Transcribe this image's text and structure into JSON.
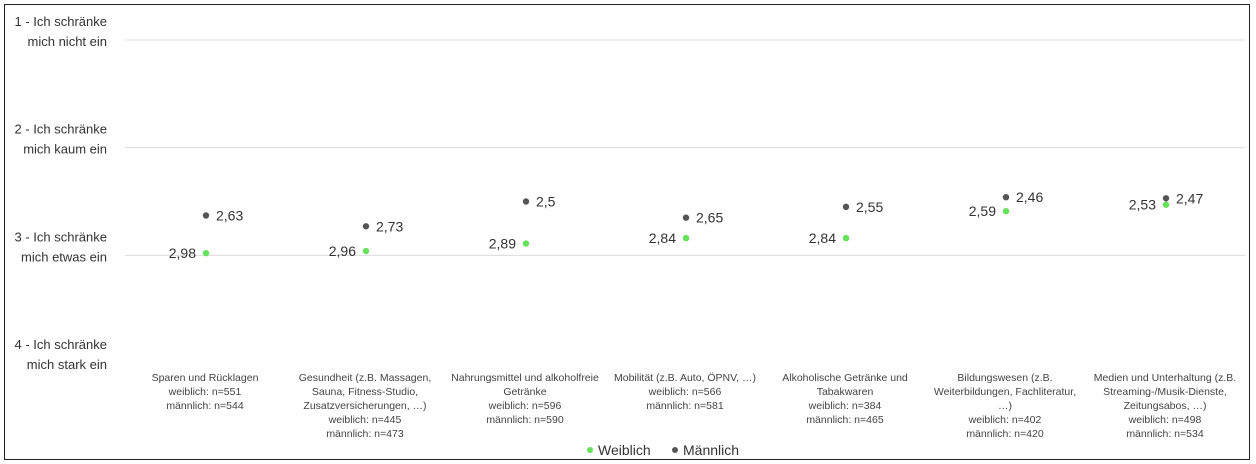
{
  "chart_data": {
    "type": "scatter",
    "y_axis": {
      "min": 1,
      "max": 4,
      "inverted": true,
      "ticks": [
        {
          "value": 1,
          "lines": [
            "1 - Ich schränke",
            "mich nicht ein"
          ]
        },
        {
          "value": 2,
          "lines": [
            "2 - Ich schränke",
            "mich kaum ein"
          ]
        },
        {
          "value": 3,
          "lines": [
            "3 - Ich schränke",
            "mich etwas ein"
          ]
        },
        {
          "value": 4,
          "lines": [
            "4 - Ich schränke",
            "mich stark ein"
          ]
        }
      ]
    },
    "grid": true,
    "legend_position": "bottom",
    "categories": [
      {
        "lines": [
          "Sparen und Rücklagen",
          "weiblich: n=551",
          "männlich: n=544"
        ]
      },
      {
        "lines": [
          "Gesundheit (z.B. Massagen,",
          "Sauna, Fitness-Studio,",
          "Zusatzversicherungen, …)",
          "weiblich: n=445",
          "männlich: n=473"
        ]
      },
      {
        "lines": [
          "Nahrungsmittel und alkoholfreie",
          "Getränke",
          "weiblich: n=596",
          "männlich: n=590"
        ]
      },
      {
        "lines": [
          "Mobilität (z.B. Auto, ÖPNV, …)",
          "weiblich: n=566",
          "männlich: n=581"
        ]
      },
      {
        "lines": [
          "Alkoholische Getränke und",
          "Tabakwaren",
          "weiblich: n=384",
          "männlich: n=465"
        ]
      },
      {
        "lines": [
          "Bildungswesen (z.B.",
          "Weiterbildungen, Fachliteratur,",
          "…)",
          "weiblich: n=402",
          "männlich: n=420"
        ]
      },
      {
        "lines": [
          "Medien und Unterhaltung (z.B.",
          "Streaming-/Musik-Dienste,",
          "Zeitungsabos, …)",
          "weiblich: n=498",
          "männlich: n=534"
        ]
      }
    ],
    "series": [
      {
        "name": "Weiblich",
        "color": "#66e25a",
        "values": [
          2.98,
          2.96,
          2.89,
          2.84,
          2.84,
          2.59,
          2.53
        ],
        "labels": [
          "2,98",
          "2,96",
          "2,89",
          "2,84",
          "2,84",
          "2,59",
          "2,53"
        ],
        "label_side": "left"
      },
      {
        "name": "Männlich",
        "color": "#555555",
        "values": [
          2.63,
          2.73,
          2.5,
          2.65,
          2.55,
          2.46,
          2.47
        ],
        "labels": [
          "2,63",
          "2,73",
          "2,5",
          "2,65",
          "2,55",
          "2,46",
          "2,47"
        ],
        "label_side": "right"
      }
    ]
  }
}
